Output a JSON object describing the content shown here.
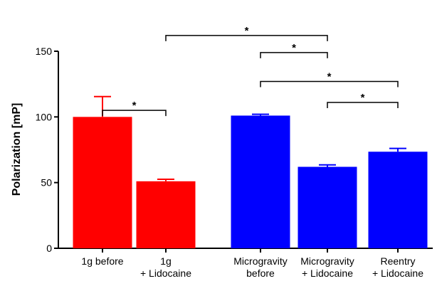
{
  "chart_data": {
    "type": "bar",
    "ylabel": "Polarization [mP]",
    "ylim": [
      0,
      150
    ],
    "yticks": [
      "0",
      "50",
      "100",
      "150"
    ],
    "categories": [
      [
        "1g before"
      ],
      [
        "1g",
        "+ Lidocaine"
      ],
      [
        "Microgravity",
        "before"
      ],
      [
        "Microgravity",
        "+ Lidocaine"
      ],
      [
        "Reentry",
        "+ Lidocaine"
      ]
    ],
    "values": [
      100,
      51,
      101,
      62,
      73.5
    ],
    "errors": [
      15.5,
      1.5,
      1,
      1.5,
      2.5
    ],
    "colors": [
      "#ff0000",
      "#ff0000",
      "#0000ff",
      "#0000ff",
      "#0000ff"
    ],
    "grid": false,
    "significance": [
      {
        "from": 0,
        "to": 1,
        "y": 105,
        "label": "*"
      },
      {
        "from": 1,
        "to": 3,
        "y": 162,
        "label": "*"
      },
      {
        "from": 2,
        "to": 3,
        "y": 149,
        "label": "*"
      },
      {
        "from": 2,
        "to": 4,
        "y": 127,
        "label": "*"
      },
      {
        "from": 3,
        "to": 4,
        "y": 111,
        "label": "*"
      }
    ]
  }
}
